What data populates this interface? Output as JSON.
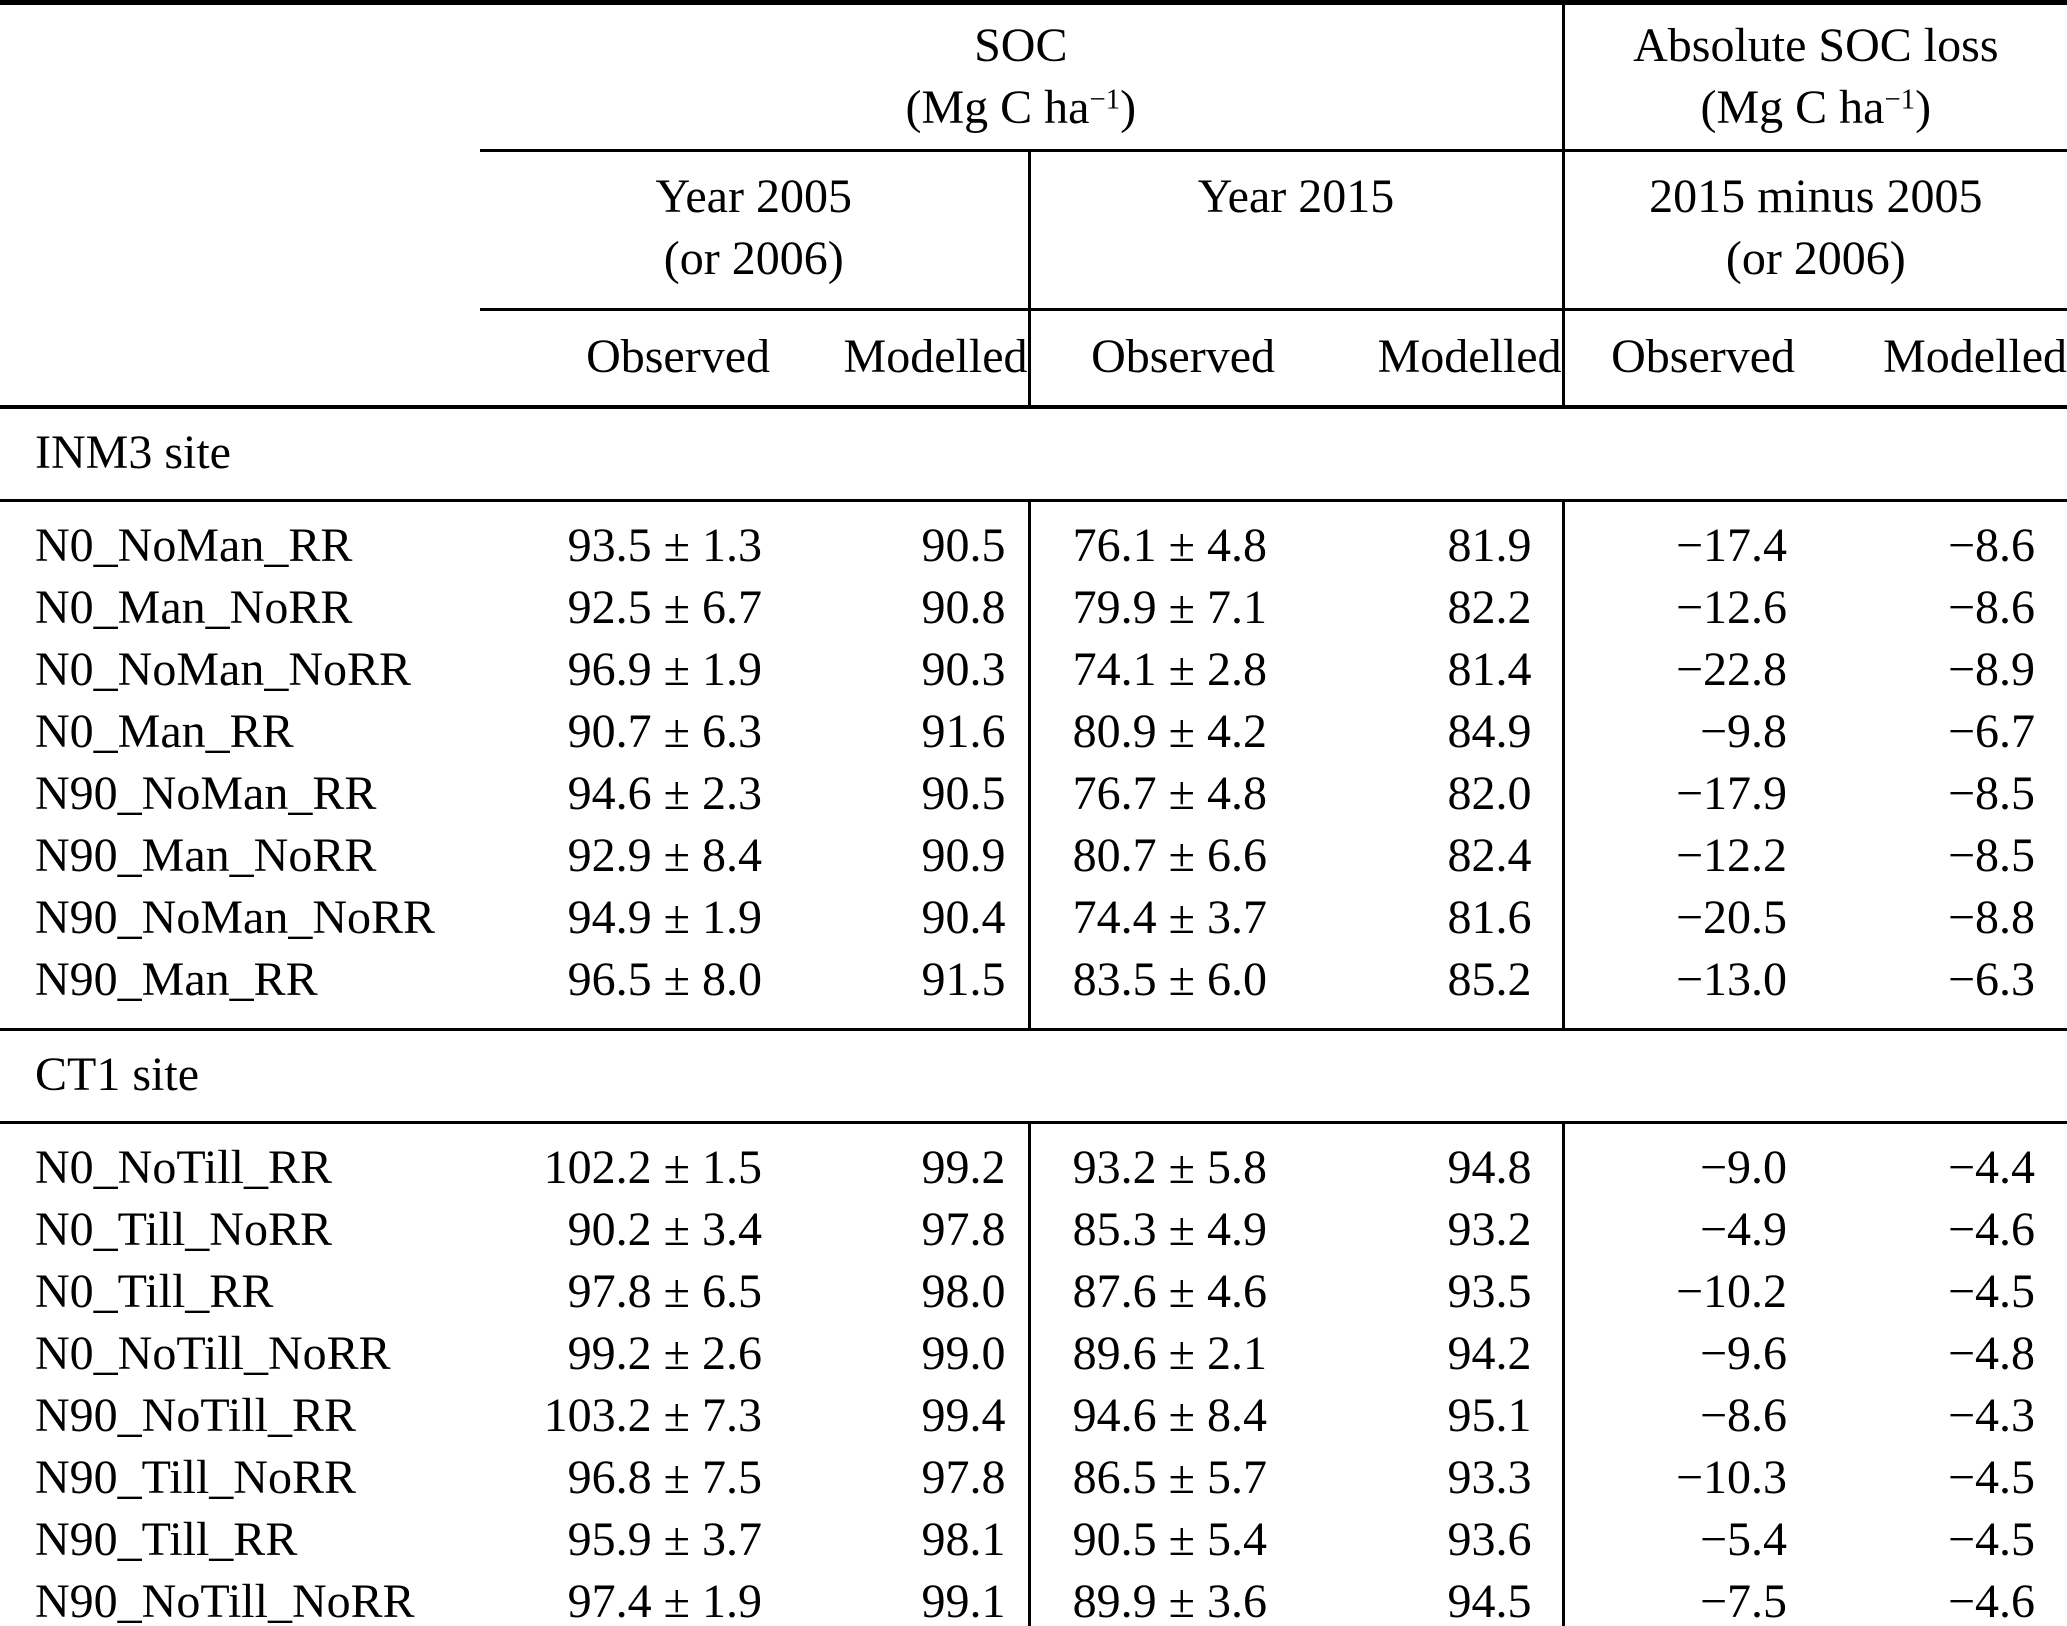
{
  "table": {
    "col_groups": [
      {
        "title": "SOC",
        "unit_open": "(Mg C ha",
        "unit_exp": "−1",
        "unit_close": ")"
      },
      {
        "title": "Absolute SOC loss",
        "unit_open": "(Mg C ha",
        "unit_exp": "−1",
        "unit_close": ")"
      }
    ],
    "sub_groups": [
      {
        "line1": "Year 2005",
        "line2": "(or 2006)"
      },
      {
        "line1": "Year 2015",
        "line2": ""
      },
      {
        "line1": "2015 minus 2005",
        "line2": "(or 2006)"
      }
    ],
    "col_headers": [
      "Observed",
      "Modelled",
      "Observed",
      "Modelled",
      "Observed",
      "Modelled"
    ],
    "sections": [
      {
        "name": "INM3 site",
        "rows": [
          {
            "label": "N0_NoMan_RR",
            "values": [
              "93.5 ± 1.3",
              "90.5",
              "76.1 ± 4.8",
              "81.9",
              "−17.4",
              "−8.6"
            ]
          },
          {
            "label": "N0_Man_NoRR",
            "values": [
              "92.5 ± 6.7",
              "90.8",
              "79.9 ± 7.1",
              "82.2",
              "−12.6",
              "−8.6"
            ]
          },
          {
            "label": "N0_NoMan_NoRR",
            "values": [
              "96.9 ± 1.9",
              "90.3",
              "74.1 ± 2.8",
              "81.4",
              "−22.8",
              "−8.9"
            ]
          },
          {
            "label": "N0_Man_RR",
            "values": [
              "90.7 ± 6.3",
              "91.6",
              "80.9 ± 4.2",
              "84.9",
              "−9.8",
              "−6.7"
            ]
          },
          {
            "label": "N90_NoMan_RR",
            "values": [
              "94.6 ± 2.3",
              "90.5",
              "76.7 ± 4.8",
              "82.0",
              "−17.9",
              "−8.5"
            ]
          },
          {
            "label": "N90_Man_NoRR",
            "values": [
              "92.9 ± 8.4",
              "90.9",
              "80.7 ± 6.6",
              "82.4",
              "−12.2",
              "−8.5"
            ]
          },
          {
            "label": "N90_NoMan_NoRR",
            "values": [
              "94.9 ± 1.9",
              "90.4",
              "74.4 ± 3.7",
              "81.6",
              "−20.5",
              "−8.8"
            ]
          },
          {
            "label": "N90_Man_RR",
            "values": [
              "96.5 ± 8.0",
              "91.5",
              "83.5 ± 6.0",
              "85.2",
              "−13.0",
              "−6.3"
            ]
          }
        ]
      },
      {
        "name": "CT1 site",
        "rows": [
          {
            "label": "N0_NoTill_RR",
            "values": [
              "102.2 ± 1.5",
              "99.2",
              "93.2 ± 5.8",
              "94.8",
              "−9.0",
              "−4.4"
            ]
          },
          {
            "label": "N0_Till_NoRR",
            "values": [
              "90.2 ± 3.4",
              "97.8",
              "85.3 ± 4.9",
              "93.2",
              "−4.9",
              "−4.6"
            ]
          },
          {
            "label": "N0_Till_RR",
            "values": [
              "97.8 ± 6.5",
              "98.0",
              "87.6 ± 4.6",
              "93.5",
              "−10.2",
              "−4.5"
            ]
          },
          {
            "label": "N0_NoTill_NoRR",
            "values": [
              "99.2 ± 2.6",
              "99.0",
              "89.6 ± 2.1",
              "94.2",
              "−9.6",
              "−4.8"
            ]
          },
          {
            "label": "N90_NoTill_RR",
            "values": [
              "103.2 ± 7.3",
              "99.4",
              "94.6 ± 8.4",
              "95.1",
              "−8.6",
              "−4.3"
            ]
          },
          {
            "label": "N90_Till_NoRR",
            "values": [
              "96.8 ± 7.5",
              "97.8",
              "86.5 ± 5.7",
              "93.3",
              "−10.3",
              "−4.5"
            ]
          },
          {
            "label": "N90_Till_RR",
            "values": [
              "95.9 ± 3.7",
              "98.1",
              "90.5 ± 5.4",
              "93.6",
              "−5.4",
              "−4.5"
            ]
          },
          {
            "label": "N90_NoTill_NoRR",
            "values": [
              "97.4 ± 1.9",
              "99.1",
              "89.9 ± 3.6",
              "94.5",
              "−7.5",
              "−4.6"
            ]
          }
        ]
      }
    ]
  }
}
